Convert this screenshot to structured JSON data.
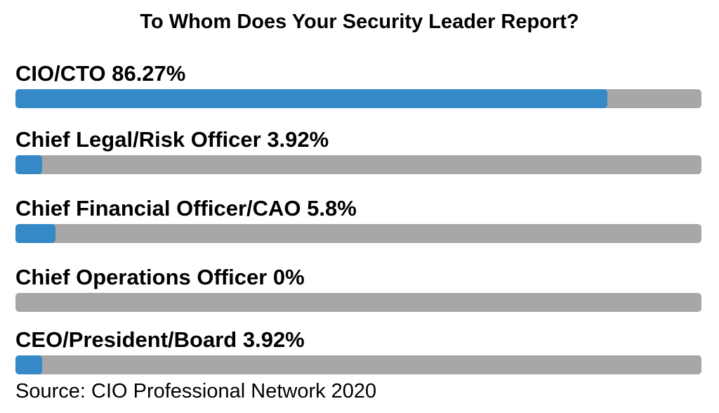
{
  "chart_data": {
    "type": "bar",
    "orientation": "horizontal",
    "title": "To Whom Does Your Security Leader Report?",
    "source": "Source: CIO Professional Network 2020",
    "xlim": [
      0,
      100
    ],
    "unit": "%",
    "colors": {
      "fill": "#3489c6",
      "track": "#a7a7a7"
    },
    "bars": [
      {
        "label": "CIO/CTO 86.27%",
        "category": "CIO/CTO",
        "value": 86.27
      },
      {
        "label": "Chief Legal/Risk Officer 3.92%",
        "category": "Chief Legal/Risk Officer",
        "value": 3.92
      },
      {
        "label": "Chief Financial Officer/CAO 5.8%",
        "category": "Chief Financial Officer/CAO",
        "value": 5.8
      },
      {
        "label": "Chief Operations Officer 0%",
        "category": "Chief Operations Officer",
        "value": 0
      },
      {
        "label": "CEO/President/Board 3.92%",
        "category": "CEO/President/Board",
        "value": 3.92
      }
    ]
  }
}
